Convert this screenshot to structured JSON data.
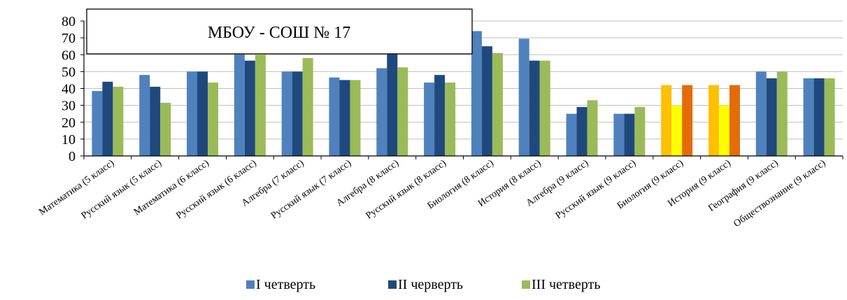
{
  "chart_data": {
    "type": "bar",
    "title": "МБОУ - СОШ № 17",
    "ylim": [
      0,
      80
    ],
    "yticks": [
      0,
      10,
      20,
      30,
      40,
      50,
      60,
      70,
      80
    ],
    "grid": true,
    "legend_position": "bottom",
    "categories": [
      "Математика (5 класс)",
      "Русский язык (5 класс)",
      "Математика (6 класс)",
      "Русский язык (6 класс)",
      "Алгебра (7 класс)",
      "Русский язык (7 класс)",
      "Алгебра (8 класс)",
      "Русский язык (8 класс)",
      "Биология (8 класс)",
      "История (8 класс)",
      "Алгебра (9 класс)",
      "Русский язык (9 класс)",
      "Биология (9 класс)",
      "История (9 класс)",
      "География (9 класс)",
      "Обществознание (9 класс)"
    ],
    "series": [
      {
        "name": "I четверть",
        "color": "#4F81BD",
        "values": [
          38.5,
          48,
          50,
          61,
          50,
          46.5,
          52,
          43.5,
          74,
          69.5,
          25,
          25,
          42,
          42,
          50,
          46
        ]
      },
      {
        "name": "II черверть",
        "color": "#1F497D",
        "values": [
          44,
          41,
          50,
          56.5,
          50,
          45,
          61,
          48,
          65,
          56.5,
          29,
          25,
          30,
          30,
          46,
          46
        ]
      },
      {
        "name": "III четверть",
        "color": "#9BBB59",
        "values": [
          41,
          31.5,
          43.5,
          60,
          58,
          45,
          52.5,
          43.5,
          61,
          56.5,
          33,
          29,
          42,
          42,
          50,
          46
        ]
      }
    ],
    "highlight_colors": {
      "Биология (9 класс)": [
        "#FFC000",
        "#FFFF00",
        "#E36C09"
      ],
      "История (9 класс)": [
        "#FFC000",
        "#FFFF00",
        "#E36C09"
      ]
    }
  }
}
